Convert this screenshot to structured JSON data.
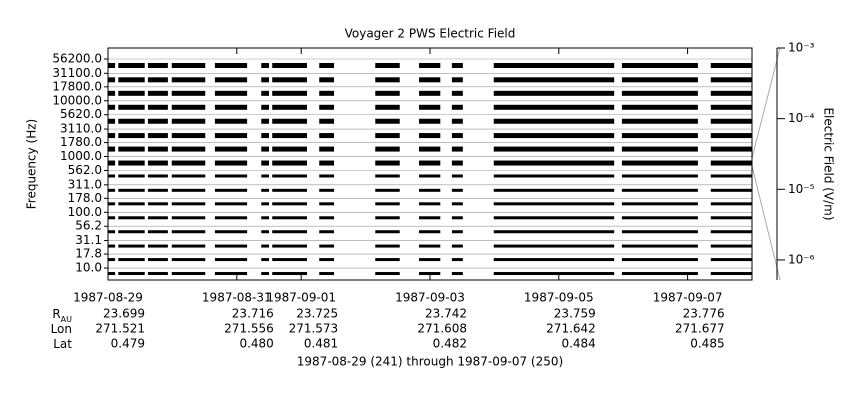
{
  "chart_data": {
    "type": "spectrogram",
    "title": "Voyager 2 PWS Electric Field",
    "ylabel": "Frequency (Hz)",
    "ylog": true,
    "ylim": [
      6.1,
      88500
    ],
    "yticks": [
      {
        "value": 56200,
        "label": "56200.0"
      },
      {
        "value": 31100,
        "label": "31100.0"
      },
      {
        "value": 17800,
        "label": "17800.0"
      },
      {
        "value": 10000,
        "label": "10000.0"
      },
      {
        "value": 5620,
        "label": "5620.0"
      },
      {
        "value": 3110,
        "label": "3110.0"
      },
      {
        "value": 1780,
        "label": "1780.0"
      },
      {
        "value": 1000,
        "label": "1000.0"
      },
      {
        "value": 562,
        "label": "562.0"
      },
      {
        "value": 311,
        "label": "311.0"
      },
      {
        "value": 178,
        "label": "178.0"
      },
      {
        "value": 100,
        "label": "100.0"
      },
      {
        "value": 56.2,
        "label": "56.2"
      },
      {
        "value": 31.1,
        "label": "31.1"
      },
      {
        "value": 17.8,
        "label": "17.8"
      },
      {
        "value": 10,
        "label": "10.0"
      }
    ],
    "xlim": [
      241,
      251
    ],
    "xticks": [
      {
        "value": 241,
        "label": "1987-08-29"
      },
      {
        "value": 243,
        "label": "1987-08-31"
      },
      {
        "value": 244,
        "label": "1987-09-01"
      },
      {
        "value": 246,
        "label": "1987-09-03"
      },
      {
        "value": 248,
        "label": "1987-09-05"
      },
      {
        "value": 250,
        "label": "1987-09-07"
      }
    ],
    "intervals": [
      [
        241.0,
        241.11
      ],
      [
        241.16,
        241.57
      ],
      [
        241.62,
        241.93
      ],
      [
        241.99,
        242.51
      ],
      [
        242.66,
        243.16
      ],
      [
        243.38,
        243.5
      ],
      [
        243.55,
        244.09
      ],
      [
        244.28,
        244.51
      ],
      [
        245.15,
        245.53
      ],
      [
        245.83,
        246.16
      ],
      [
        246.34,
        246.51
      ],
      [
        246.99,
        248.86
      ],
      [
        248.98,
        250.16
      ],
      [
        250.36,
        251.0
      ]
    ],
    "color": "#000000",
    "grid": true,
    "y2label": "Electric Field (V/m)",
    "y2log": true,
    "y2lim": [
      5.2e-07,
      0.001
    ],
    "y2ticks": [
      {
        "value": 0.001,
        "label": "10⁻³"
      },
      {
        "value": 0.0001,
        "label": "10⁻⁴"
      },
      {
        "value": 1e-05,
        "label": "10⁻⁵"
      },
      {
        "value": 1e-06,
        "label": "10⁻⁶"
      }
    ],
    "ephemeris": [
      {
        "label": "R",
        "sub": "AU",
        "values": [
          "23.699",
          "23.716",
          "23.725",
          "23.742",
          "23.759",
          "23.776"
        ]
      },
      {
        "label": "Lon",
        "values": [
          "271.521",
          "271.556",
          "271.573",
          "271.608",
          "271.642",
          "271.677"
        ]
      },
      {
        "label": "Lat",
        "values": [
          "0.479",
          "0.480",
          "0.481",
          "0.482",
          "0.484",
          "0.485"
        ]
      }
    ],
    "footer": "1987-08-29 (241) through 1987-09-07 (250)"
  }
}
